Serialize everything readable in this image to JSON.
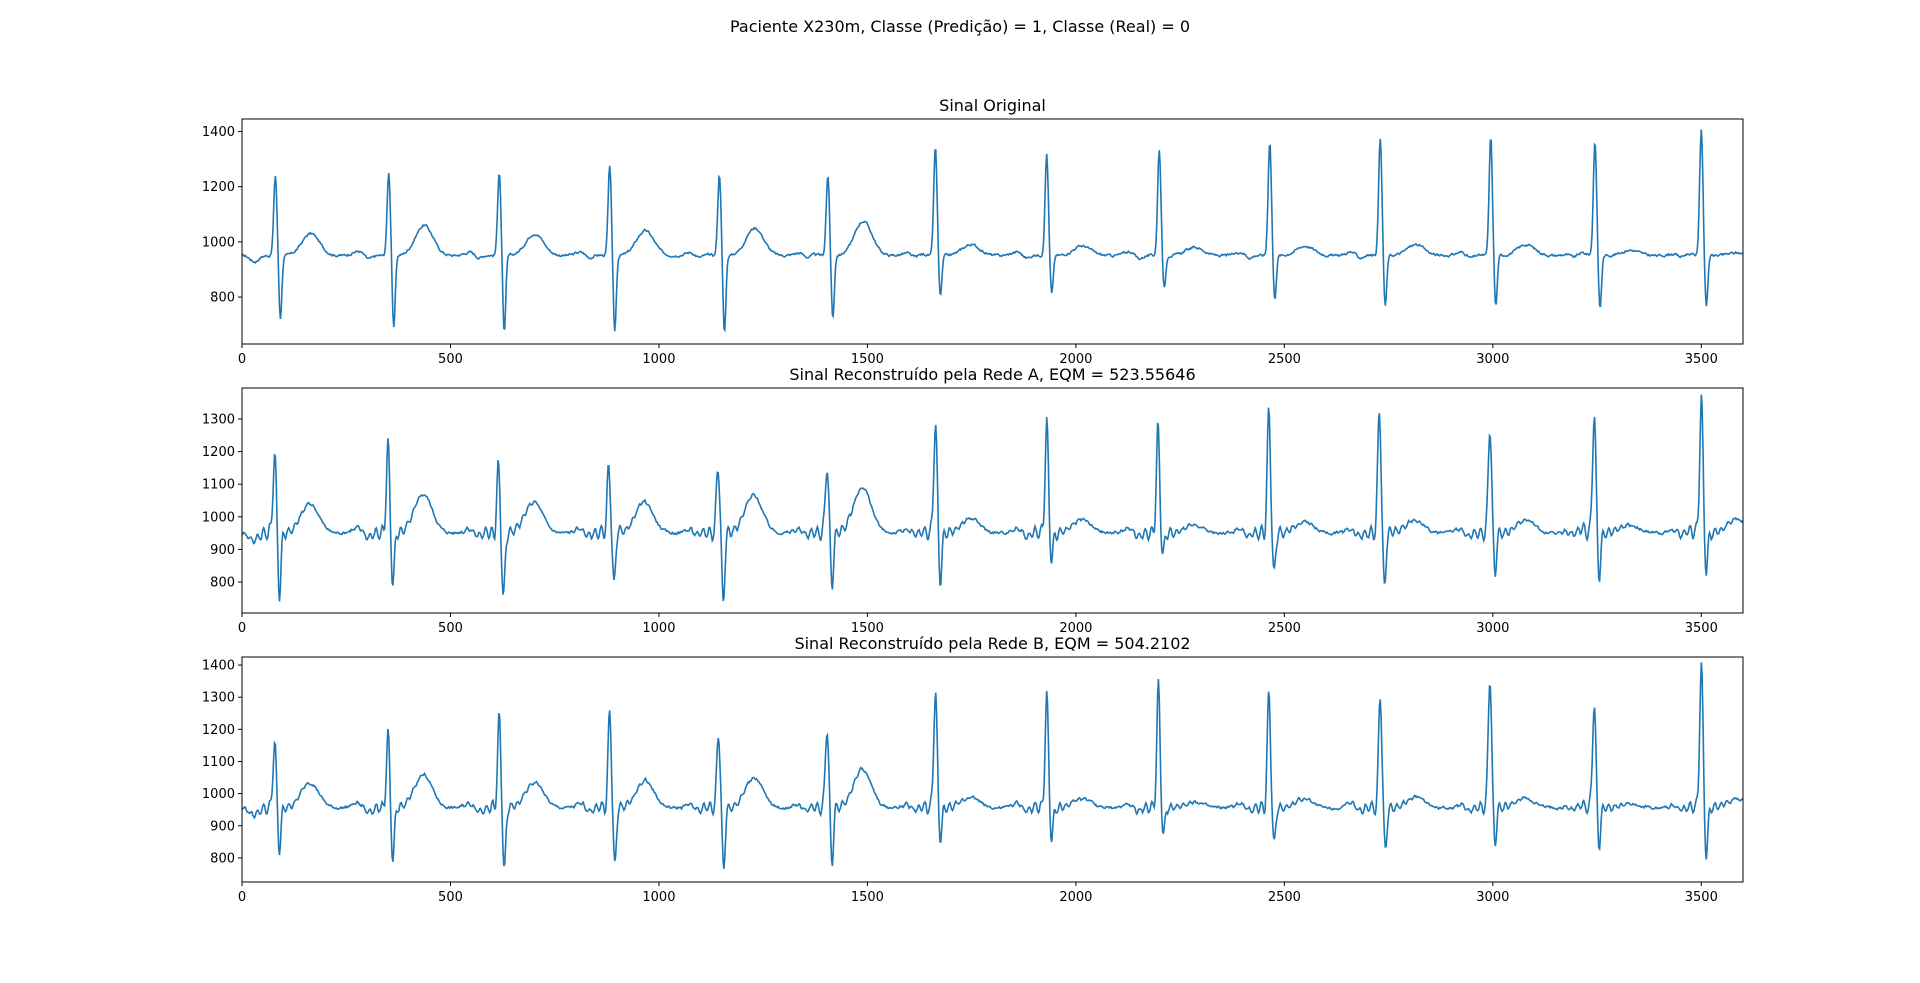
{
  "figure": {
    "title": "Paciente X230m, Classe (Predição) = 1, Classe (Real) = 0"
  },
  "colors": {
    "line": "#1f77b4",
    "axes": "#000000",
    "background": "#ffffff"
  },
  "chart_data": [
    {
      "type": "line",
      "title": "Sinal Original",
      "xlabel": "",
      "ylabel": "",
      "xlim": [
        0,
        3600
      ],
      "ylim": [
        630,
        1445
      ],
      "xticks": [
        0,
        500,
        1000,
        1500,
        2000,
        2500,
        3000,
        3500
      ],
      "yticks": [
        800,
        1000,
        1200,
        1400
      ],
      "grid": false,
      "baseline": 950,
      "beats": [
        {
          "x": 80,
          "r": 1240,
          "s": 720,
          "t": 1030
        },
        {
          "x": 352,
          "r": 1250,
          "s": 685,
          "t": 1060
        },
        {
          "x": 617,
          "r": 1255,
          "s": 670,
          "t": 1030
        },
        {
          "x": 882,
          "r": 1275,
          "s": 672,
          "t": 1040
        },
        {
          "x": 1145,
          "r": 1245,
          "s": 668,
          "t": 1050
        },
        {
          "x": 1405,
          "r": 1240,
          "s": 720,
          "t": 1075
        },
        {
          "x": 1663,
          "r": 1345,
          "s": 800,
          "t": 990
        },
        {
          "x": 1930,
          "r": 1320,
          "s": 808,
          "t": 985
        },
        {
          "x": 2200,
          "r": 1335,
          "s": 830,
          "t": 980
        },
        {
          "x": 2465,
          "r": 1365,
          "s": 790,
          "t": 985
        },
        {
          "x": 2730,
          "r": 1375,
          "s": 765,
          "t": 990
        },
        {
          "x": 2995,
          "r": 1380,
          "s": 765,
          "t": 990
        },
        {
          "x": 3245,
          "r": 1365,
          "s": 755,
          "t": 970
        },
        {
          "x": 3500,
          "r": 1410,
          "s": 763,
          "t": 960
        }
      ],
      "ringing": 0
    },
    {
      "type": "line",
      "title": "Sinal Reconstruído pela Rede A, EQM = 523.55646",
      "xlabel": "",
      "ylabel": "",
      "xlim": [
        0,
        3600
      ],
      "ylim": [
        705,
        1395
      ],
      "xticks": [
        0,
        500,
        1000,
        1500,
        2000,
        2500,
        3000,
        3500
      ],
      "yticks": [
        800,
        900,
        1000,
        1100,
        1200,
        1300
      ],
      "grid": false,
      "baseline": 950,
      "beats": [
        {
          "x": 78,
          "r": 1190,
          "s": 765,
          "t": 1040
        },
        {
          "x": 350,
          "r": 1210,
          "s": 790,
          "t": 1070
        },
        {
          "x": 615,
          "r": 1145,
          "s": 740,
          "t": 1045
        },
        {
          "x": 880,
          "r": 1155,
          "s": 780,
          "t": 1045
        },
        {
          "x": 1142,
          "r": 1165,
          "s": 735,
          "t": 1065
        },
        {
          "x": 1403,
          "r": 1165,
          "s": 790,
          "t": 1090
        },
        {
          "x": 1663,
          "r": 1290,
          "s": 805,
          "t": 995
        },
        {
          "x": 1930,
          "r": 1280,
          "s": 865,
          "t": 990
        },
        {
          "x": 2197,
          "r": 1265,
          "s": 875,
          "t": 975
        },
        {
          "x": 2463,
          "r": 1320,
          "s": 815,
          "t": 985
        },
        {
          "x": 2728,
          "r": 1335,
          "s": 780,
          "t": 990
        },
        {
          "x": 2993,
          "r": 1290,
          "s": 830,
          "t": 990
        },
        {
          "x": 3243,
          "r": 1320,
          "s": 820,
          "t": 975
        },
        {
          "x": 3500,
          "r": 1360,
          "s": 835,
          "t": 995
        }
      ],
      "ringing": 35
    },
    {
      "type": "line",
      "title": "Sinal Reconstruído pela Rede B, EQM = 504.2102",
      "xlabel": "",
      "ylabel": "",
      "xlim": [
        0,
        3600
      ],
      "ylim": [
        725,
        1425
      ],
      "xticks": [
        0,
        500,
        1000,
        1500,
        2000,
        2500,
        3000,
        3500
      ],
      "yticks": [
        800,
        900,
        1000,
        1100,
        1200,
        1300,
        1400
      ],
      "grid": false,
      "baseline": 955,
      "beats": [
        {
          "x": 78,
          "r": 1155,
          "s": 825,
          "t": 1035
        },
        {
          "x": 350,
          "r": 1175,
          "s": 785,
          "t": 1060
        },
        {
          "x": 617,
          "r": 1230,
          "s": 752,
          "t": 1035
        },
        {
          "x": 882,
          "r": 1255,
          "s": 770,
          "t": 1040
        },
        {
          "x": 1143,
          "r": 1195,
          "s": 760,
          "t": 1050
        },
        {
          "x": 1403,
          "r": 1215,
          "s": 790,
          "t": 1075
        },
        {
          "x": 1663,
          "r": 1320,
          "s": 860,
          "t": 990
        },
        {
          "x": 1930,
          "r": 1300,
          "s": 860,
          "t": 985
        },
        {
          "x": 2198,
          "r": 1325,
          "s": 860,
          "t": 975
        },
        {
          "x": 2463,
          "r": 1305,
          "s": 835,
          "t": 985
        },
        {
          "x": 2730,
          "r": 1315,
          "s": 822,
          "t": 990
        },
        {
          "x": 2993,
          "r": 1375,
          "s": 845,
          "t": 985
        },
        {
          "x": 3243,
          "r": 1285,
          "s": 845,
          "t": 970
        },
        {
          "x": 3500,
          "r": 1395,
          "s": 810,
          "t": 985
        }
      ],
      "ringing": 30
    }
  ]
}
